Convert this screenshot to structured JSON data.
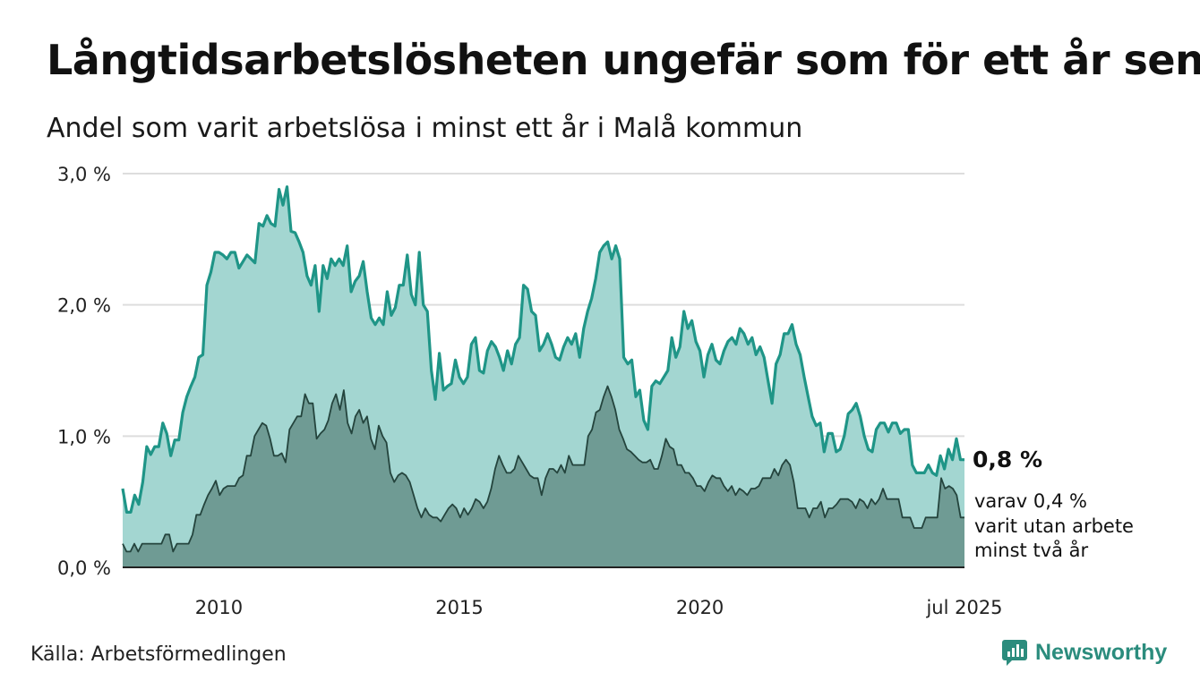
{
  "title": "Långtidsarbetslösheten ungefär som för ett år sen",
  "subtitle": "Andel som varit arbetslösa i minst ett år i Malå kommun",
  "source": "Källa: Arbetsförmedlingen",
  "brand": {
    "name": "Newsworthy",
    "icon": "newsworthy-logo-icon"
  },
  "colors": {
    "series1_line": "#1f9587",
    "series1_fill": "#a3d6d1",
    "series2_line": "#24443d",
    "series2_fill": "#6f9b94",
    "grid": "#dddddd",
    "baseline": "#222222"
  },
  "end_labels": {
    "main": "0,8 %",
    "sub": [
      "varav 0,4 %",
      "varit utan arbete",
      "minst två år"
    ]
  },
  "chart_data": {
    "type": "area",
    "x_start": "2008-01",
    "x_end": "2025-07",
    "x_ticks": [
      {
        "x": "2010-01",
        "label": "2010"
      },
      {
        "x": "2015-01",
        "label": "2015"
      },
      {
        "x": "2020-01",
        "label": "2020"
      },
      {
        "x": "2025-07",
        "label": "jul 2025"
      }
    ],
    "ylim": [
      0,
      3
    ],
    "y_ticks": [
      {
        "value": 0,
        "label": "0,0 %"
      },
      {
        "value": 1,
        "label": "1,0 %"
      },
      {
        "value": 2,
        "label": "2,0 %"
      },
      {
        "value": 3,
        "label": "3,0 %"
      }
    ],
    "grid": true,
    "series": [
      {
        "values": [
          0.6,
          0.42,
          0.42,
          0.55,
          0.48,
          0.65,
          0.92,
          0.86,
          0.92,
          0.92,
          1.1,
          1.02,
          0.85,
          0.97,
          0.97,
          1.18,
          1.3,
          1.38,
          1.45,
          1.6,
          1.62,
          2.15,
          2.25,
          2.4,
          2.4,
          2.38,
          2.35,
          2.4,
          2.4,
          2.28,
          2.33,
          2.38,
          2.35,
          2.32,
          2.62,
          2.6,
          2.68,
          2.62,
          2.6,
          2.88,
          2.76,
          2.9,
          2.56,
          2.55,
          2.48,
          2.4,
          2.22,
          2.15,
          2.3,
          1.95,
          2.3,
          2.2,
          2.35,
          2.3,
          2.35,
          2.3,
          2.45,
          2.1,
          2.18,
          2.22,
          2.33,
          2.1,
          1.9,
          1.85,
          1.9,
          1.85,
          2.1,
          1.92,
          1.98,
          2.15,
          2.15,
          2.38,
          2.08,
          2.0,
          2.4,
          2.0,
          1.95,
          1.5,
          1.28,
          1.63,
          1.35,
          1.38,
          1.4,
          1.58,
          1.45,
          1.4,
          1.45,
          1.7,
          1.75,
          1.5,
          1.48,
          1.65,
          1.72,
          1.68,
          1.6,
          1.5,
          1.65,
          1.55,
          1.7,
          1.75,
          2.15,
          2.12,
          1.95,
          1.92,
          1.65,
          1.7,
          1.78,
          1.7,
          1.6,
          1.58,
          1.68,
          1.75,
          1.7,
          1.78,
          1.6,
          1.82,
          1.95,
          2.05,
          2.2,
          2.4,
          2.45,
          2.48,
          2.35,
          2.45,
          2.35,
          1.6,
          1.55,
          1.58,
          1.3,
          1.35,
          1.12,
          1.05,
          1.38,
          1.42,
          1.4,
          1.45,
          1.5,
          1.75,
          1.6,
          1.68,
          1.95,
          1.82,
          1.88,
          1.72,
          1.65,
          1.45,
          1.62,
          1.7,
          1.58,
          1.55,
          1.65,
          1.72,
          1.75,
          1.7,
          1.82,
          1.78,
          1.7,
          1.75,
          1.62,
          1.68,
          1.6,
          1.42,
          1.25,
          1.55,
          1.62,
          1.78,
          1.78,
          1.85,
          1.7,
          1.62,
          1.45,
          1.3,
          1.15,
          1.08,
          1.1,
          0.88,
          1.02,
          1.02,
          0.88,
          0.9,
          1.0,
          1.17,
          1.2,
          1.25,
          1.15,
          1.0,
          0.9,
          0.88,
          1.05,
          1.1,
          1.1,
          1.03,
          1.1,
          1.1,
          1.02,
          1.05,
          1.05,
          0.78,
          0.72,
          0.72,
          0.72,
          0.78,
          0.72,
          0.7,
          0.85,
          0.75,
          0.9,
          0.82,
          0.98,
          0.82,
          0.82
        ]
      },
      {
        "values": [
          0.18,
          0.12,
          0.12,
          0.18,
          0.12,
          0.18,
          0.18,
          0.18,
          0.18,
          0.18,
          0.18,
          0.25,
          0.25,
          0.12,
          0.18,
          0.18,
          0.18,
          0.18,
          0.25,
          0.4,
          0.4,
          0.48,
          0.55,
          0.6,
          0.66,
          0.55,
          0.6,
          0.62,
          0.62,
          0.62,
          0.68,
          0.7,
          0.85,
          0.85,
          1.0,
          1.05,
          1.1,
          1.08,
          0.98,
          0.85,
          0.85,
          0.87,
          0.8,
          1.05,
          1.1,
          1.15,
          1.15,
          1.32,
          1.25,
          1.25,
          0.98,
          1.02,
          1.05,
          1.12,
          1.25,
          1.32,
          1.2,
          1.35,
          1.1,
          1.02,
          1.15,
          1.2,
          1.1,
          1.15,
          0.98,
          0.9,
          1.08,
          1.0,
          0.95,
          0.72,
          0.65,
          0.7,
          0.72,
          0.7,
          0.65,
          0.55,
          0.45,
          0.38,
          0.45,
          0.4,
          0.38,
          0.38,
          0.35,
          0.4,
          0.45,
          0.48,
          0.45,
          0.38,
          0.45,
          0.4,
          0.45,
          0.52,
          0.5,
          0.45,
          0.5,
          0.6,
          0.75,
          0.85,
          0.78,
          0.72,
          0.72,
          0.75,
          0.85,
          0.8,
          0.75,
          0.7,
          0.68,
          0.68,
          0.55,
          0.68,
          0.75,
          0.75,
          0.72,
          0.78,
          0.72,
          0.85,
          0.78,
          0.78,
          0.78,
          0.78,
          1.0,
          1.05,
          1.18,
          1.2,
          1.3,
          1.38,
          1.3,
          1.2,
          1.05,
          0.98,
          0.9,
          0.88,
          0.85,
          0.82,
          0.8,
          0.8,
          0.82,
          0.75,
          0.75,
          0.85,
          0.98,
          0.92,
          0.9,
          0.78,
          0.78,
          0.72,
          0.72,
          0.68,
          0.62,
          0.62,
          0.58,
          0.65,
          0.7,
          0.68,
          0.68,
          0.62,
          0.58,
          0.62,
          0.55,
          0.6,
          0.58,
          0.55,
          0.6,
          0.6,
          0.62,
          0.68,
          0.68,
          0.68,
          0.75,
          0.7,
          0.78,
          0.82,
          0.78,
          0.65,
          0.45,
          0.45,
          0.45,
          0.38,
          0.45,
          0.45,
          0.5,
          0.38,
          0.45,
          0.45,
          0.48,
          0.52,
          0.52,
          0.52,
          0.5,
          0.45,
          0.52,
          0.5,
          0.45,
          0.52,
          0.48,
          0.52,
          0.6,
          0.52,
          0.52,
          0.52,
          0.52,
          0.38,
          0.38,
          0.38,
          0.3,
          0.3,
          0.3,
          0.38,
          0.38,
          0.38,
          0.38,
          0.68,
          0.6,
          0.62,
          0.6,
          0.55,
          0.38,
          0.38
        ]
      }
    ]
  }
}
